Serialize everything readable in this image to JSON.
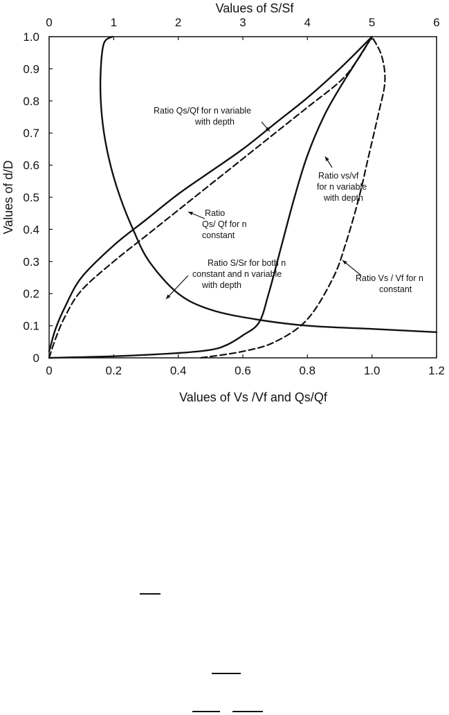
{
  "chart_data": {
    "type": "line",
    "title": "",
    "top_axis": {
      "label": "Values of S/Sf",
      "ticks": [
        "0",
        "1",
        "2",
        "3",
        "4",
        "5",
        "6"
      ],
      "range": [
        0,
        6
      ]
    },
    "bottom_axis": {
      "label": "Values of Vs /Vf and Qs/Qf",
      "ticks": [
        "0",
        "0.2",
        "0.4",
        "0.6",
        "0.8",
        "1.0",
        "1.2"
      ],
      "range": [
        0,
        1.2
      ]
    },
    "y_axis": {
      "label": "Values of d/D",
      "ticks": [
        "0",
        "0.1",
        "0.2",
        "0.3",
        "0.4",
        "0.5",
        "0.6",
        "0.7",
        "0.8",
        "0.9",
        "1.0"
      ],
      "range": [
        0,
        1.0
      ]
    },
    "grid": false,
    "series": [
      {
        "name": "Ratio Qs/Qf for n variable with depth",
        "style": "solid",
        "x_axis": "bottom",
        "points": [
          [
            0,
            0.02
          ],
          [
            0.02,
            0.09
          ],
          [
            0.05,
            0.16
          ],
          [
            0.1,
            0.25
          ],
          [
            0.2,
            0.35
          ],
          [
            0.3,
            0.43
          ],
          [
            0.4,
            0.51
          ],
          [
            0.5,
            0.58
          ],
          [
            0.6,
            0.65
          ],
          [
            0.7,
            0.73
          ],
          [
            0.8,
            0.81
          ],
          [
            0.9,
            0.9
          ],
          [
            1.0,
            1.0
          ]
        ]
      },
      {
        "name": "Ratio Qs/ Qf for n constant",
        "style": "dashed",
        "x_axis": "bottom",
        "points": [
          [
            0,
            0.0
          ],
          [
            0.02,
            0.06
          ],
          [
            0.05,
            0.13
          ],
          [
            0.1,
            0.21
          ],
          [
            0.2,
            0.3
          ],
          [
            0.3,
            0.38
          ],
          [
            0.4,
            0.46
          ],
          [
            0.5,
            0.54
          ],
          [
            0.6,
            0.62
          ],
          [
            0.7,
            0.7
          ],
          [
            0.8,
            0.78
          ],
          [
            0.9,
            0.86
          ],
          [
            0.95,
            0.92
          ],
          [
            1.0,
            1.0
          ]
        ]
      },
      {
        "name": "Ratio vs/vf for n variable with depth",
        "style": "solid",
        "x_axis": "bottom",
        "points": [
          [
            0,
            0.0
          ],
          [
            0.2,
            0.005
          ],
          [
            0.4,
            0.015
          ],
          [
            0.5,
            0.025
          ],
          [
            0.55,
            0.04
          ],
          [
            0.6,
            0.07
          ],
          [
            0.65,
            0.11
          ],
          [
            0.68,
            0.2
          ],
          [
            0.72,
            0.35
          ],
          [
            0.76,
            0.5
          ],
          [
            0.8,
            0.63
          ],
          [
            0.85,
            0.75
          ],
          [
            0.9,
            0.84
          ],
          [
            0.95,
            0.92
          ],
          [
            1.0,
            1.0
          ]
        ]
      },
      {
        "name": "Ratio Vs / Vf for n constant",
        "style": "dashed",
        "x_axis": "bottom",
        "points": [
          [
            0.47,
            0.0
          ],
          [
            0.6,
            0.02
          ],
          [
            0.7,
            0.05
          ],
          [
            0.8,
            0.12
          ],
          [
            0.88,
            0.25
          ],
          [
            0.92,
            0.36
          ],
          [
            0.96,
            0.5
          ],
          [
            0.99,
            0.63
          ],
          [
            1.02,
            0.76
          ],
          [
            1.04,
            0.86
          ],
          [
            1.03,
            0.94
          ],
          [
            1.0,
            1.0
          ]
        ]
      },
      {
        "name": "Ratio S/Sr for both n constant and n variable with depth",
        "style": "solid",
        "x_axis": "top",
        "points": [
          [
            0.98,
            1.0
          ],
          [
            0.85,
            0.98
          ],
          [
            0.8,
            0.9
          ],
          [
            0.8,
            0.8
          ],
          [
            0.85,
            0.7
          ],
          [
            0.95,
            0.6
          ],
          [
            1.1,
            0.5
          ],
          [
            1.3,
            0.4
          ],
          [
            1.55,
            0.3
          ],
          [
            2.0,
            0.2
          ],
          [
            2.5,
            0.15
          ],
          [
            3.2,
            0.12
          ],
          [
            4.0,
            0.1
          ],
          [
            5.0,
            0.09
          ],
          [
            6.0,
            0.08
          ]
        ]
      }
    ],
    "annotations": [
      {
        "lines": [
          "Ratio Qs/Qf for n variable",
          "with depth"
        ]
      },
      {
        "lines": [
          "Ratio vs/vf",
          "for n variable",
          "with depth"
        ]
      },
      {
        "lines": [
          "Ratio",
          "Qs/ Qf for n",
          "constant"
        ]
      },
      {
        "lines": [
          "Ratio S/Sr for both n",
          "constant and n variable",
          "with depth"
        ]
      },
      {
        "lines": [
          "Ratio Vs / Vf for n",
          "constant"
        ]
      }
    ]
  }
}
